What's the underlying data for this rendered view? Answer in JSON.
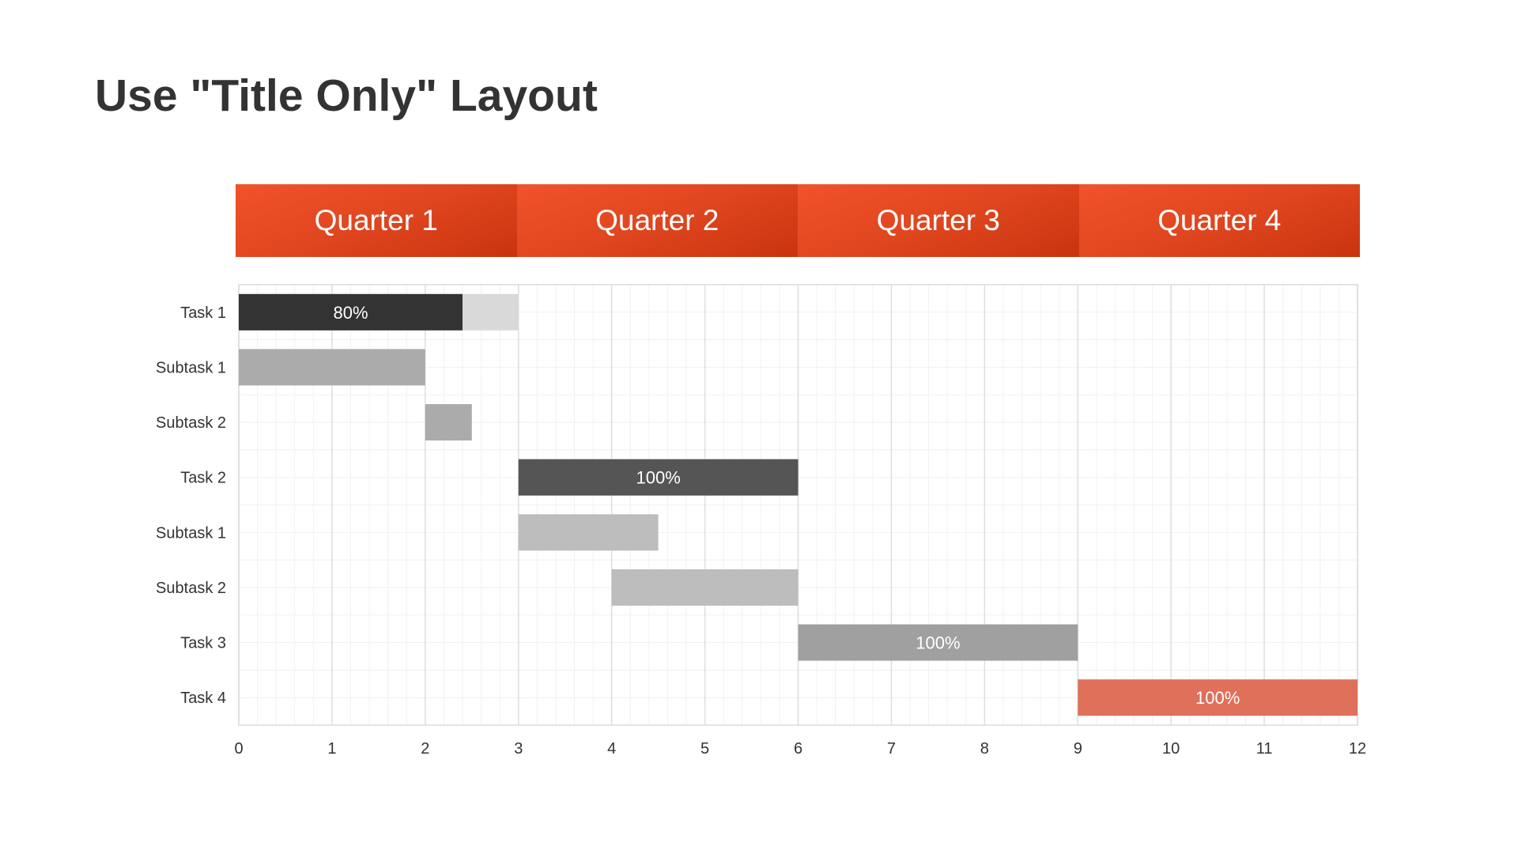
{
  "slide": {
    "title": "Use \"Title Only\" Layout"
  },
  "quarters": [
    "Quarter 1",
    "Quarter 2",
    "Quarter 3",
    "Quarter 4"
  ],
  "colors": {
    "quarter_header": "#e3471f",
    "task1_done": "#333333",
    "task1_remaining": "#d9d9d9",
    "subtask_q1": "#ababab",
    "task2": "#555555",
    "subtask_q2": "#bdbdbd",
    "task3": "#a0a0a0",
    "task4": "#df705a"
  },
  "chart_data": {
    "type": "bar",
    "orientation": "horizontal",
    "stacked": true,
    "categories": [
      "Task 1",
      "Subtask 1",
      "Subtask 2",
      "Task 2",
      "Subtask 1",
      "Subtask 2",
      "Task 3",
      "Task 4"
    ],
    "xlim": [
      0,
      12
    ],
    "x_ticks": [
      0,
      1,
      2,
      3,
      4,
      5,
      6,
      7,
      8,
      9,
      10,
      11,
      12
    ],
    "grid": true,
    "bars": [
      {
        "row": 0,
        "start": 0,
        "end": 2.4,
        "color": "#333333",
        "label": "80%",
        "label_color": "#ffffff"
      },
      {
        "row": 0,
        "start": 2.4,
        "end": 3,
        "color": "#d9d9d9",
        "label": ""
      },
      {
        "row": 1,
        "start": 0,
        "end": 2,
        "color": "#ababab",
        "label": ""
      },
      {
        "row": 2,
        "start": 2,
        "end": 2.5,
        "color": "#ababab",
        "label": ""
      },
      {
        "row": 3,
        "start": 3,
        "end": 6,
        "color": "#555555",
        "label": "100%",
        "label_color": "#ffffff"
      },
      {
        "row": 4,
        "start": 3,
        "end": 4.5,
        "color": "#bdbdbd",
        "label": ""
      },
      {
        "row": 5,
        "start": 4,
        "end": 6,
        "color": "#bdbdbd",
        "label": ""
      },
      {
        "row": 6,
        "start": 6,
        "end": 9,
        "color": "#a0a0a0",
        "label": "100%",
        "label_color": "#ffffff"
      },
      {
        "row": 7,
        "start": 9,
        "end": 12,
        "color": "#df705a",
        "label": "100%",
        "label_color": "#ffffff"
      }
    ]
  }
}
